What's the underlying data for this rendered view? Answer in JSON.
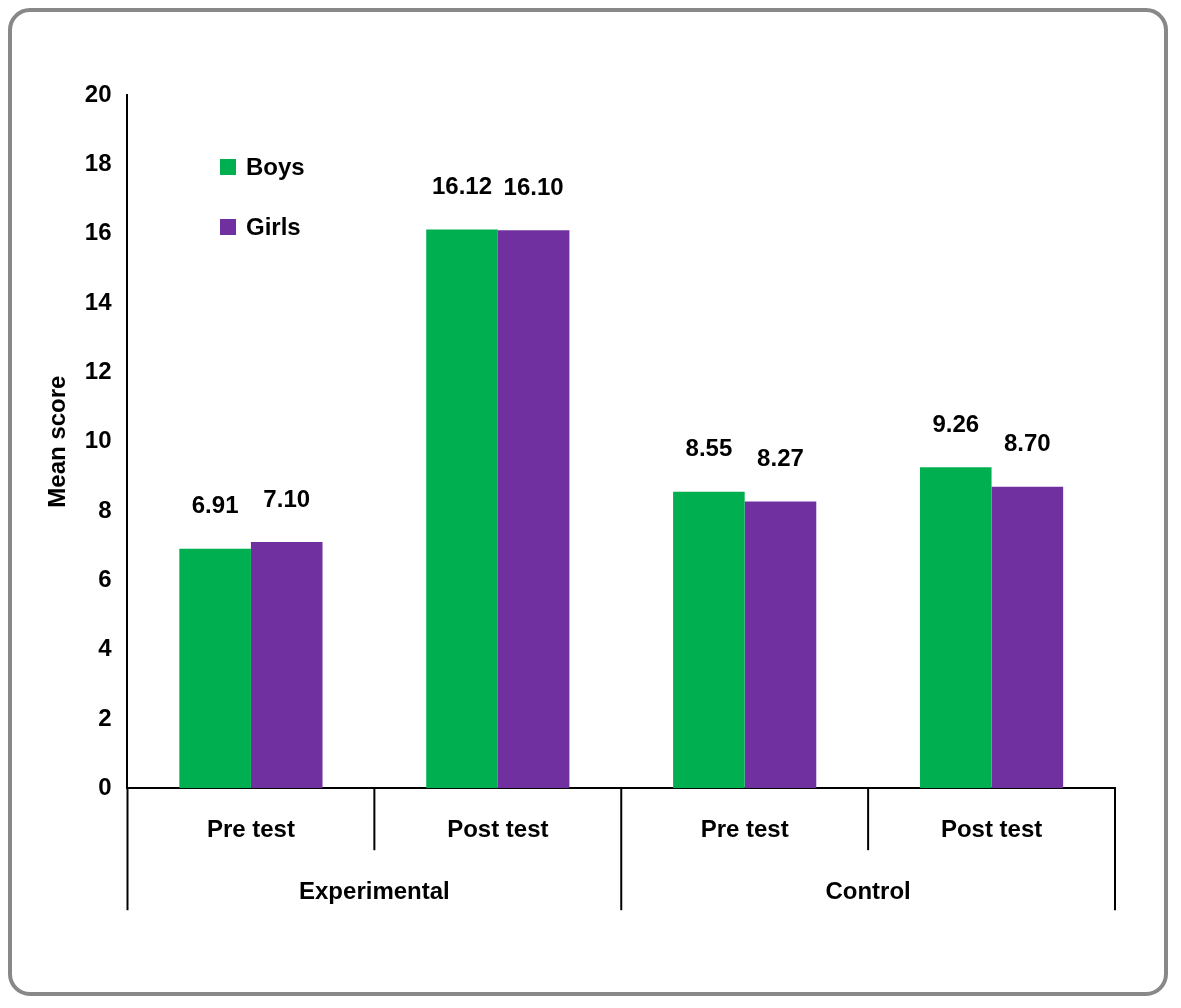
{
  "chart_data": {
    "type": "bar",
    "ylabel": "Mean score",
    "categories": [
      "Pre test",
      "Post test",
      "Pre test",
      "Post test"
    ],
    "series": [
      {
        "name": "Boys",
        "color": "#00b050",
        "values": [
          6.91,
          16.12,
          8.55,
          9.26
        ],
        "value_labels": [
          "6.91",
          "16.12",
          "8.55",
          "9.26"
        ]
      },
      {
        "name": "Girls",
        "color": "#7030a0",
        "values": [
          7.1,
          16.1,
          8.27,
          8.7
        ],
        "value_labels": [
          "7.10",
          "16.10",
          "8.27",
          "8.70"
        ]
      }
    ],
    "annotations": [
      "Experimental",
      "Control"
    ],
    "ylim": [
      0,
      20
    ],
    "yticks": [
      0,
      2,
      4,
      6,
      8,
      10,
      12,
      14,
      16,
      18,
      20
    ],
    "grid": false,
    "legend": "top left"
  }
}
